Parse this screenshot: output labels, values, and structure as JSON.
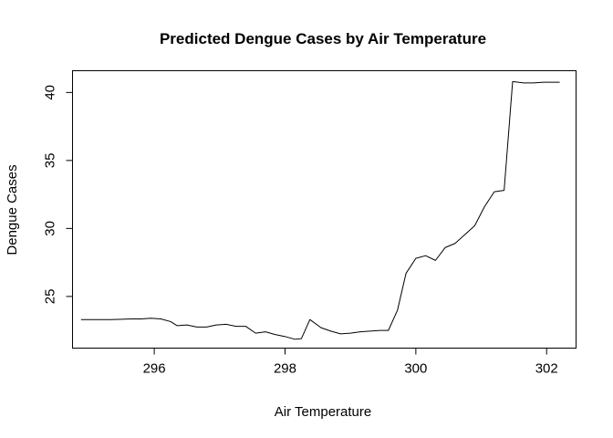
{
  "chart_data": {
    "type": "line",
    "title": "Predicted Dengue Cases by Air Temperature",
    "xlabel": "Air Temperature",
    "ylabel": "Dengue Cases",
    "xlim": [
      294.75,
      302.45
    ],
    "ylim": [
      21.2,
      41.6
    ],
    "xticks": [
      296,
      298,
      300,
      302
    ],
    "yticks": [
      25,
      30,
      35,
      40
    ],
    "grid": false,
    "legend": "none",
    "series": [
      {
        "color": "#000000",
        "x": [
          294.88,
          295.05,
          295.2,
          295.35,
          295.5,
          295.65,
          295.8,
          295.95,
          296.1,
          296.25,
          296.35,
          296.5,
          296.65,
          296.8,
          296.95,
          297.1,
          297.25,
          297.4,
          297.55,
          297.7,
          297.85,
          298.0,
          298.15,
          298.25,
          298.38,
          298.55,
          298.7,
          298.85,
          299.0,
          299.15,
          299.3,
          299.45,
          299.58,
          299.72,
          299.85,
          300.0,
          300.15,
          300.3,
          300.45,
          300.6,
          300.75,
          300.9,
          301.05,
          301.2,
          301.35,
          301.48,
          301.65,
          301.8,
          301.95,
          302.2
        ],
        "y": [
          23.3,
          23.3,
          23.3,
          23.3,
          23.32,
          23.35,
          23.35,
          23.4,
          23.35,
          23.15,
          22.85,
          22.9,
          22.75,
          22.75,
          22.9,
          22.95,
          22.8,
          22.8,
          22.3,
          22.4,
          22.2,
          22.05,
          21.85,
          21.9,
          23.3,
          22.7,
          22.45,
          22.25,
          22.3,
          22.4,
          22.45,
          22.5,
          22.5,
          24.0,
          26.7,
          27.8,
          28.0,
          27.65,
          28.6,
          28.9,
          29.55,
          30.2,
          31.6,
          32.7,
          32.8,
          40.8,
          40.7,
          40.7,
          40.75,
          40.75
        ]
      }
    ]
  }
}
